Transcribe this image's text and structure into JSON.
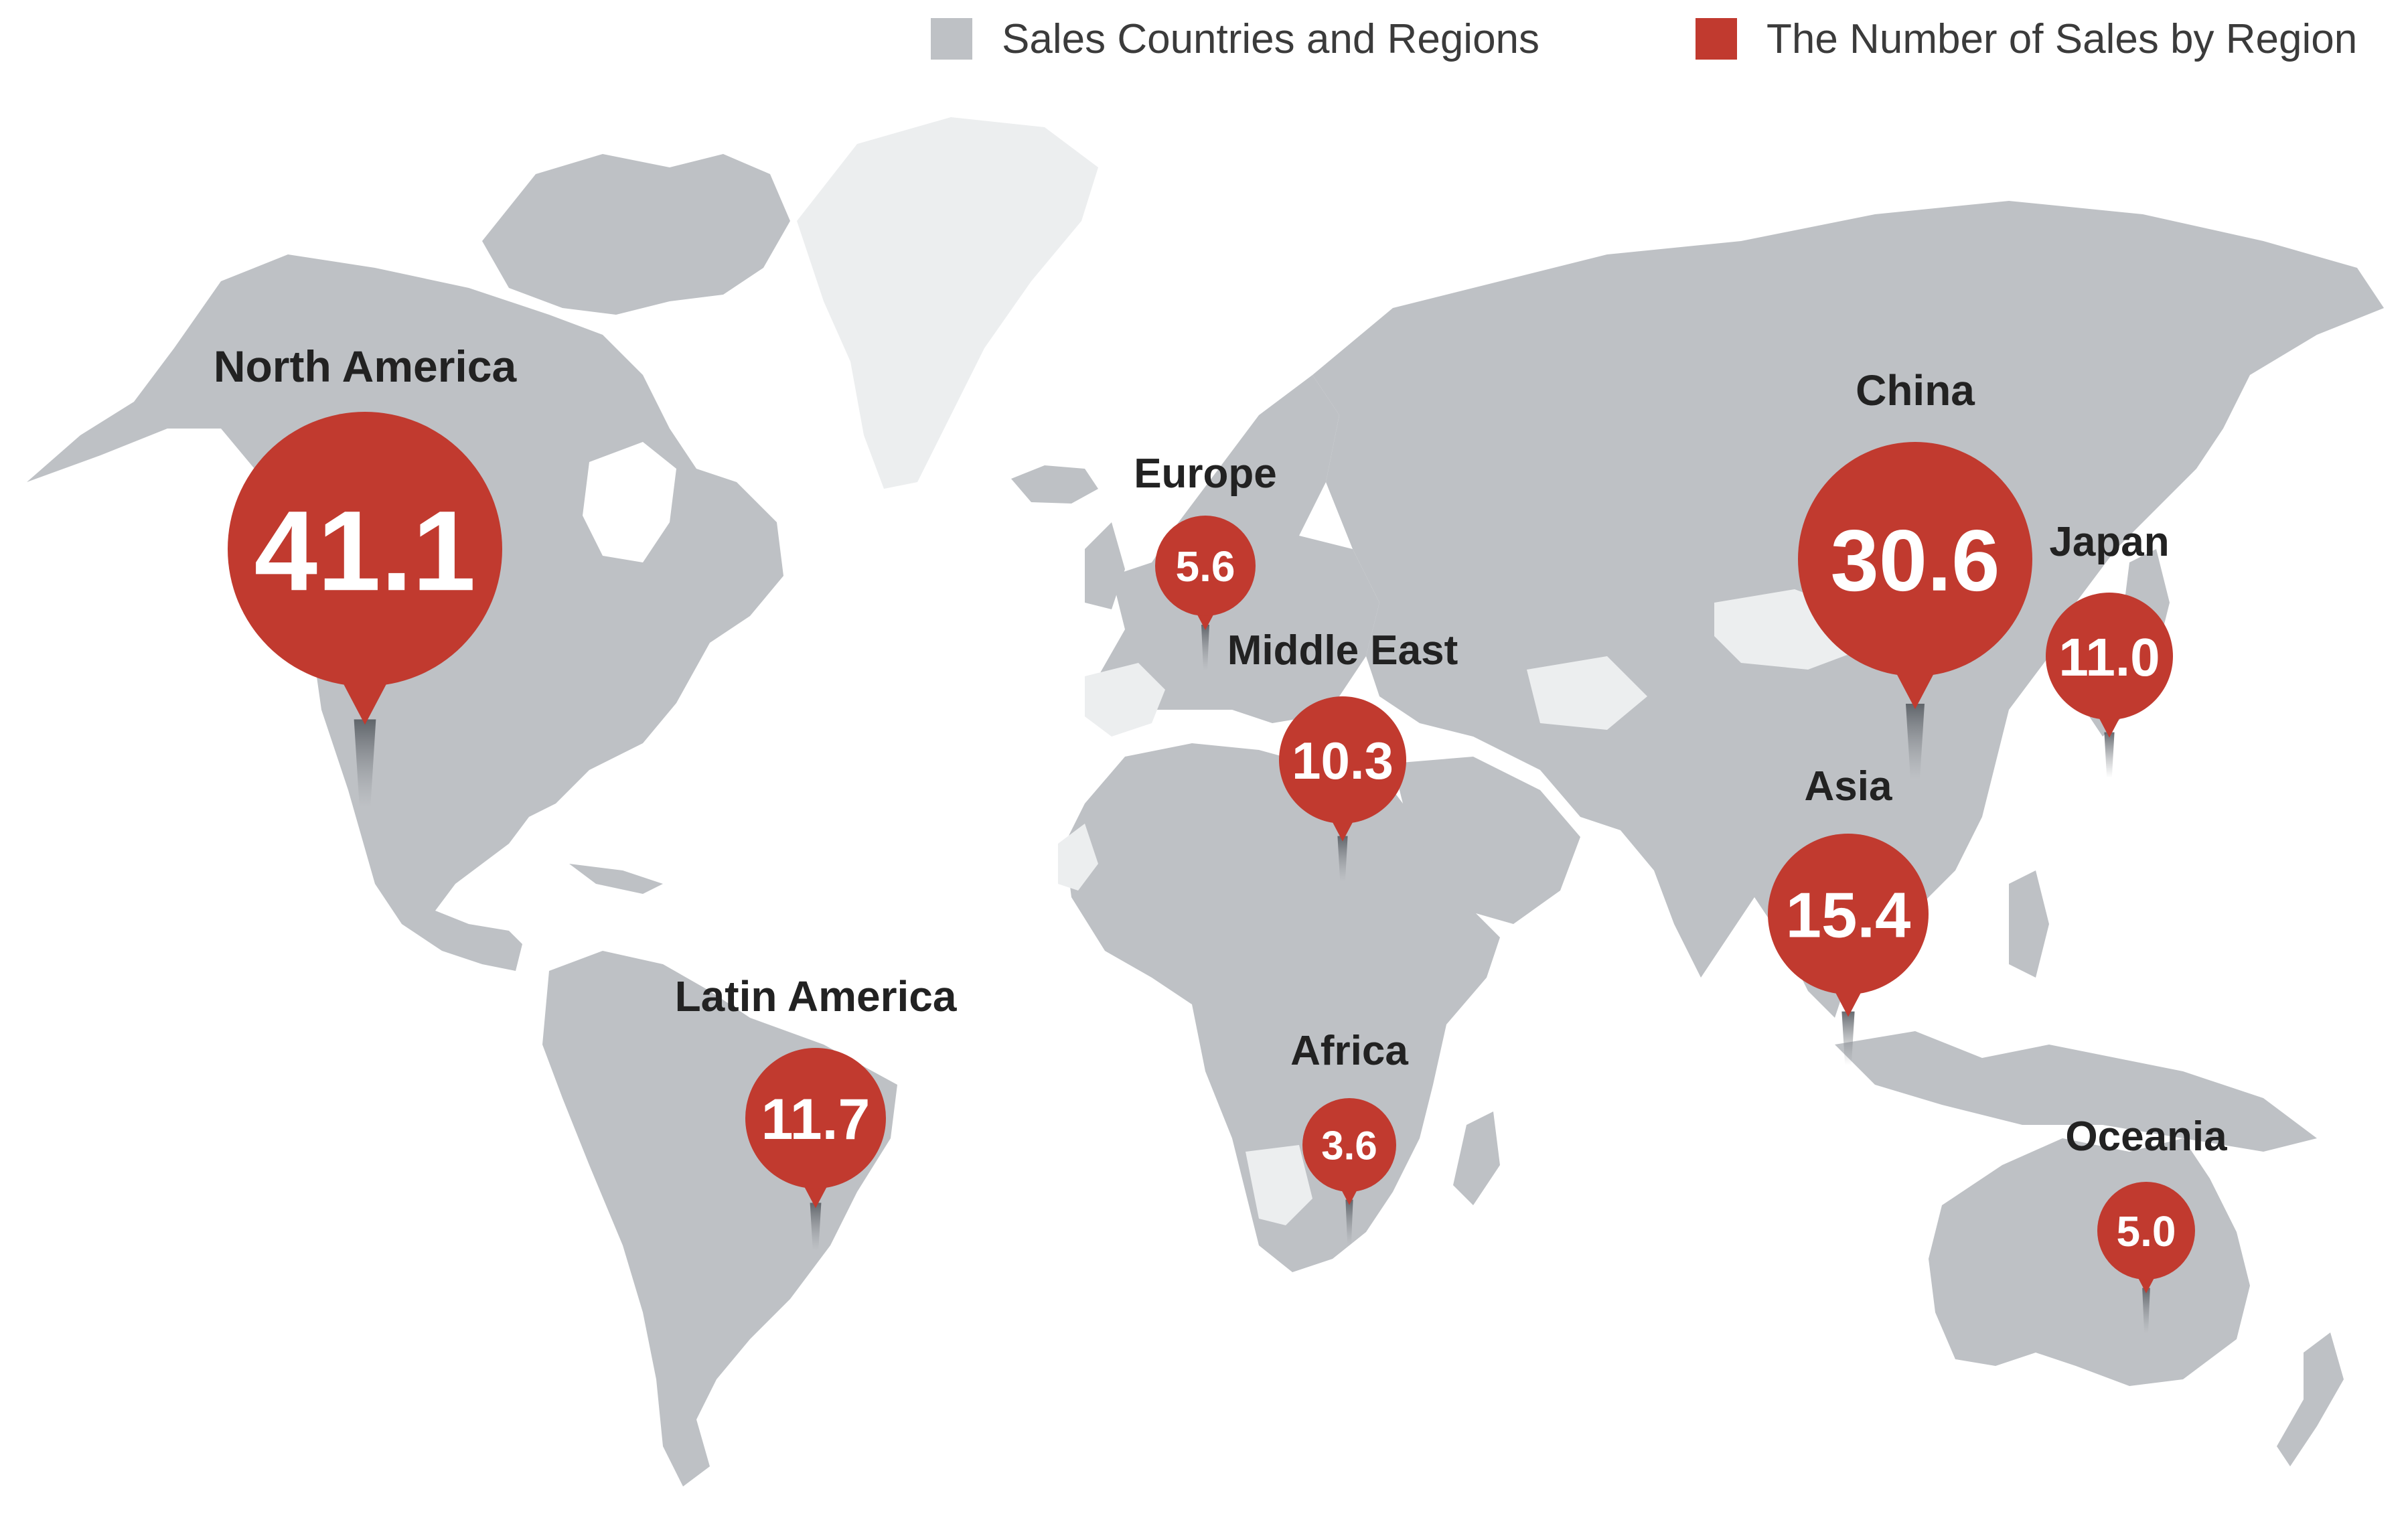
{
  "legend": {
    "countries_label": "Sales Countries and Regions",
    "sales_label": "The Number of Sales by Region"
  },
  "colors": {
    "land_sales": "#bec1c5",
    "land_other": "#eceeef",
    "pin": "#c13a2f",
    "label": "#222222"
  },
  "regions": [
    {
      "name": "North America",
      "value": "41.1"
    },
    {
      "name": "Europe",
      "value": "5.6"
    },
    {
      "name": "Middle East",
      "value": "10.3"
    },
    {
      "name": "China",
      "value": "30.6"
    },
    {
      "name": "Japan",
      "value": "11.0"
    },
    {
      "name": "Asia",
      "value": "15.4"
    },
    {
      "name": "Latin America",
      "value": "11.7"
    },
    {
      "name": "Africa",
      "value": "3.6"
    },
    {
      "name": "Oceania",
      "value": "5.0"
    }
  ]
}
